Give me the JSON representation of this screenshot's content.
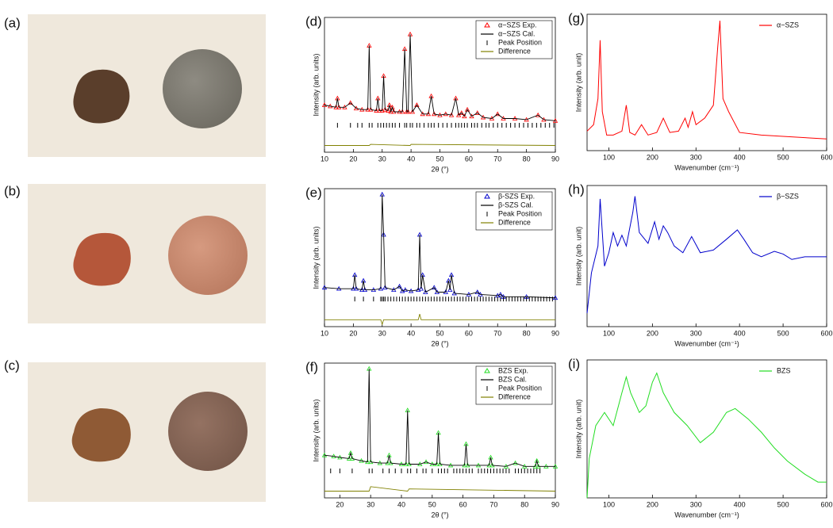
{
  "panels": [
    {
      "label": "(a)"
    },
    {
      "label": "(b)"
    },
    {
      "label": "(c)"
    }
  ],
  "chart_data": [
    {
      "type": "line",
      "label": "(d)",
      "xlabel": "2θ (°)",
      "ylabel": "Intensity (arb. units)",
      "xlim": [
        10,
        90
      ],
      "xticks": [
        10,
        20,
        30,
        40,
        50,
        60,
        70,
        80,
        90
      ],
      "ylim": [
        -20,
        100
      ],
      "x": [
        10,
        12,
        14,
        14.5,
        15,
        17,
        19,
        21,
        23,
        25,
        25.5,
        26,
        28,
        28.5,
        29,
        30,
        30.5,
        31,
        32,
        32.5,
        33,
        33.5,
        34,
        36,
        37,
        37.8,
        38.5,
        39,
        39.7,
        40.5,
        42,
        44,
        46,
        47,
        48,
        50,
        52,
        54,
        55.5,
        56.5,
        57.5,
        58.5,
        59.5,
        61,
        63,
        65,
        68,
        70,
        72,
        76,
        80,
        84,
        86,
        90
      ],
      "series": [
        {
          "name": "α−SZS Exp.",
          "color": "#ff0000",
          "marker": "triangle",
          "values": [
            22,
            21,
            20,
            28,
            20,
            20,
            24,
            19,
            18,
            18,
            75,
            18,
            17,
            28,
            17,
            17,
            48,
            18,
            17,
            22,
            16,
            20,
            16,
            16,
            16,
            72,
            16,
            16,
            85,
            16,
            22,
            14,
            14,
            30,
            14,
            13,
            14,
            13,
            28,
            13,
            15,
            12,
            18,
            12,
            15,
            11,
            10,
            14,
            10,
            10,
            9,
            13,
            9,
            8
          ]
        },
        {
          "name": "α−SZS Cal.",
          "color": "#000000",
          "values": [
            22,
            21,
            20,
            28,
            20,
            20,
            24,
            19,
            18,
            18,
            75,
            18,
            17,
            28,
            17,
            17,
            48,
            18,
            17,
            22,
            16,
            20,
            16,
            16,
            16,
            72,
            16,
            16,
            85,
            16,
            22,
            14,
            14,
            30,
            14,
            13,
            14,
            13,
            28,
            13,
            15,
            12,
            18,
            12,
            15,
            11,
            10,
            14,
            10,
            10,
            9,
            13,
            9,
            8
          ]
        },
        {
          "name": "Peak Position",
          "color": "#000000",
          "marker": "tick",
          "x": [
            14.5,
            19,
            21.5,
            23,
            25.5,
            26.5,
            28.5,
            29.5,
            30.5,
            31.5,
            32.5,
            33.5,
            34.5,
            36,
            37.8,
            38.5,
            39.7,
            40.5,
            42,
            43,
            44.5,
            46,
            47,
            48,
            49.5,
            51,
            52.5,
            54,
            55.5,
            56.5,
            57.5,
            58.5,
            59.5,
            61,
            62,
            63,
            64.5,
            66,
            67,
            68.5,
            70,
            71.5,
            73,
            74.5,
            76,
            77.5,
            79,
            80.5,
            82,
            83.5,
            85,
            86.5,
            88,
            89.5
          ]
        },
        {
          "name": "Difference",
          "color": "#808000",
          "x": [
            10,
            25.5,
            26,
            39.7,
            40,
            90
          ],
          "values": [
            -14,
            -14,
            -13,
            -14,
            -13,
            -14
          ]
        }
      ]
    },
    {
      "type": "line",
      "label": "(e)",
      "xlabel": "2θ (°)",
      "ylabel": "Intensity (arb. units)",
      "xlim": [
        10,
        90
      ],
      "xticks": [
        10,
        20,
        30,
        40,
        50,
        60,
        70,
        80,
        90
      ],
      "ylim": [
        -20,
        100
      ],
      "x": [
        10,
        15,
        20,
        20.5,
        21,
        23,
        23.5,
        24,
        27,
        29.5,
        30,
        30.5,
        31,
        34,
        36,
        37,
        38,
        40,
        42.5,
        43,
        43.5,
        44,
        45,
        48,
        49,
        52,
        53,
        53.5,
        54,
        55,
        60,
        63,
        64,
        70,
        71,
        72,
        80,
        90
      ],
      "series": [
        {
          "name": "β-SZS Exp.",
          "color": "#0000cc",
          "marker": "triangle",
          "values": [
            14,
            13,
            13,
            25,
            13,
            12,
            20,
            12,
            12,
            13,
            95,
            60,
            14,
            12,
            15,
            11,
            12,
            11,
            12,
            60,
            13,
            25,
            10,
            14,
            10,
            10,
            20,
            12,
            25,
            9,
            8,
            10,
            8,
            7,
            8,
            6,
            6,
            5
          ]
        },
        {
          "name": "β-SZS Cal.",
          "color": "#000000",
          "values": [
            14,
            13,
            13,
            25,
            13,
            12,
            20,
            12,
            12,
            13,
            95,
            60,
            14,
            12,
            15,
            11,
            12,
            11,
            12,
            60,
            13,
            25,
            10,
            14,
            10,
            10,
            20,
            12,
            25,
            9,
            8,
            10,
            8,
            7,
            8,
            6,
            6,
            5
          ]
        },
        {
          "name": "Peak Position",
          "color": "#000000",
          "marker": "tick",
          "x": [
            20.5,
            23.5,
            27,
            29.5,
            30,
            30.5,
            31,
            32,
            33,
            34,
            35,
            36,
            37,
            38,
            39,
            40,
            41,
            42,
            43,
            44,
            45,
            46,
            47,
            48,
            49,
            50,
            51,
            52,
            53,
            54,
            55,
            56,
            57,
            58,
            59,
            60,
            61,
            62,
            63,
            64,
            65,
            66,
            67,
            68,
            69,
            70,
            71,
            72,
            73,
            74,
            75,
            76,
            77,
            78,
            79,
            80,
            81,
            82,
            83,
            84,
            85,
            86,
            87,
            88,
            89
          ]
        },
        {
          "name": "Difference",
          "color": "#808000",
          "x": [
            10,
            29.5,
            30,
            30.5,
            42.5,
            43,
            43.5,
            90
          ],
          "values": [
            -14,
            -14,
            -18,
            -14,
            -14,
            -9,
            -14,
            -14
          ]
        }
      ]
    },
    {
      "type": "line",
      "label": "(f)",
      "xlabel": "2θ (°)",
      "ylabel": "Intensity (arb. units)",
      "xlim": [
        15,
        90
      ],
      "xticks": [
        20,
        30,
        40,
        50,
        60,
        70,
        80,
        90
      ],
      "ylim": [
        -20,
        100
      ],
      "x": [
        15,
        18,
        20,
        23,
        23.5,
        24,
        27,
        29,
        29.5,
        30,
        33,
        35.5,
        36,
        36.5,
        40,
        41.5,
        42,
        42.5,
        46,
        48,
        50,
        51.5,
        52,
        52.5,
        56,
        60.5,
        61,
        61.5,
        65,
        68.5,
        69,
        69.5,
        74,
        77,
        80,
        83.5,
        84,
        84.5,
        87,
        90
      ],
      "series": [
        {
          "name": "BZS Exp.",
          "color": "#22dd22",
          "marker": "triangle",
          "values": [
            18,
            17,
            16,
            15,
            20,
            15,
            13,
            12,
            95,
            12,
            11,
            11,
            18,
            11,
            10,
            10,
            58,
            10,
            10,
            12,
            10,
            10,
            38,
            10,
            9,
            9,
            28,
            9,
            9,
            9,
            16,
            9,
            8,
            11,
            8,
            8,
            13,
            8,
            8,
            8
          ]
        },
        {
          "name": "BZS Cal.",
          "color": "#000000",
          "values": [
            18,
            17,
            16,
            15,
            20,
            15,
            13,
            12,
            95,
            12,
            11,
            11,
            18,
            11,
            10,
            10,
            58,
            10,
            10,
            12,
            10,
            10,
            38,
            10,
            9,
            9,
            28,
            9,
            9,
            9,
            16,
            9,
            8,
            11,
            8,
            8,
            13,
            8,
            8,
            8
          ]
        },
        {
          "name": "Peak Position",
          "color": "#000000",
          "marker": "tick",
          "x": [
            17,
            20,
            24,
            29.5,
            30.5,
            34,
            36,
            38,
            40,
            42,
            43,
            45,
            47,
            48,
            50,
            52,
            53,
            54,
            55,
            57,
            58,
            59,
            60,
            61,
            62,
            63,
            65,
            66,
            67,
            68,
            69,
            70,
            71,
            72,
            73,
            74,
            75,
            77,
            78,
            79,
            80,
            81,
            82,
            83,
            84,
            85
          ]
        },
        {
          "name": "Difference",
          "color": "#808000",
          "x": [
            15,
            29.5,
            30,
            42,
            42.5,
            90
          ],
          "values": [
            -14,
            -14,
            -10,
            -14,
            -12,
            -14
          ]
        }
      ]
    },
    {
      "type": "line",
      "label": "(g)",
      "xlabel": "Wavenumber (cm⁻¹)",
      "ylabel": "Intensity (arb. unit)",
      "xlim": [
        50,
        600
      ],
      "xticks": [
        100,
        200,
        300,
        400,
        500,
        600
      ],
      "ylim": [
        0,
        105
      ],
      "x": [
        50,
        65,
        75,
        80,
        85,
        95,
        110,
        130,
        140,
        148,
        160,
        175,
        190,
        210,
        225,
        240,
        260,
        275,
        282,
        292,
        300,
        320,
        340,
        350,
        355,
        362,
        375,
        400,
        450,
        500,
        550,
        600
      ],
      "series": [
        {
          "name": "α−SZS",
          "color": "#ff0000",
          "values": [
            15,
            20,
            40,
            85,
            30,
            12,
            12,
            15,
            35,
            14,
            12,
            20,
            12,
            14,
            25,
            14,
            15,
            25,
            18,
            30,
            20,
            25,
            35,
            80,
            100,
            40,
            30,
            14,
            12,
            11,
            10,
            9
          ]
        }
      ]
    },
    {
      "type": "line",
      "label": "(h)",
      "xlabel": "Wavenumber (cm⁻¹)",
      "ylabel": "Intensity (arb. unit)",
      "xlim": [
        50,
        600
      ],
      "xticks": [
        100,
        200,
        300,
        400,
        500,
        600
      ],
      "ylim": [
        0,
        105
      ],
      "x": [
        50,
        60,
        75,
        80,
        90,
        100,
        110,
        120,
        130,
        140,
        155,
        160,
        170,
        190,
        205,
        215,
        225,
        235,
        250,
        270,
        290,
        310,
        340,
        370,
        395,
        410,
        430,
        450,
        480,
        500,
        520,
        550,
        600
      ],
      "series": [
        {
          "name": "β−SZS",
          "color": "#0000cc",
          "values": [
            10,
            40,
            60,
            95,
            45,
            55,
            70,
            60,
            68,
            60,
            85,
            97,
            70,
            62,
            78,
            65,
            75,
            70,
            60,
            55,
            67,
            55,
            57,
            65,
            72,
            65,
            55,
            52,
            56,
            54,
            50,
            52,
            52
          ]
        }
      ]
    },
    {
      "type": "line",
      "label": "(i)",
      "xlabel": "Wavenumber (cm⁻¹)",
      "ylabel": "Intensity (arb. unit)",
      "xlim": [
        50,
        600
      ],
      "xticks": [
        100,
        200,
        300,
        400,
        500,
        600
      ],
      "ylim": [
        0,
        105
      ],
      "x": [
        50,
        55,
        70,
        90,
        110,
        130,
        140,
        150,
        170,
        185,
        200,
        210,
        225,
        250,
        280,
        310,
        340,
        370,
        390,
        420,
        450,
        480,
        510,
        550,
        580,
        600
      ],
      "series": [
        {
          "name": "BZS",
          "color": "#22dd22",
          "values": [
            0,
            30,
            55,
            65,
            55,
            80,
            92,
            80,
            65,
            70,
            88,
            95,
            80,
            65,
            55,
            42,
            50,
            65,
            68,
            60,
            50,
            38,
            28,
            18,
            12,
            12
          ]
        }
      ]
    }
  ]
}
